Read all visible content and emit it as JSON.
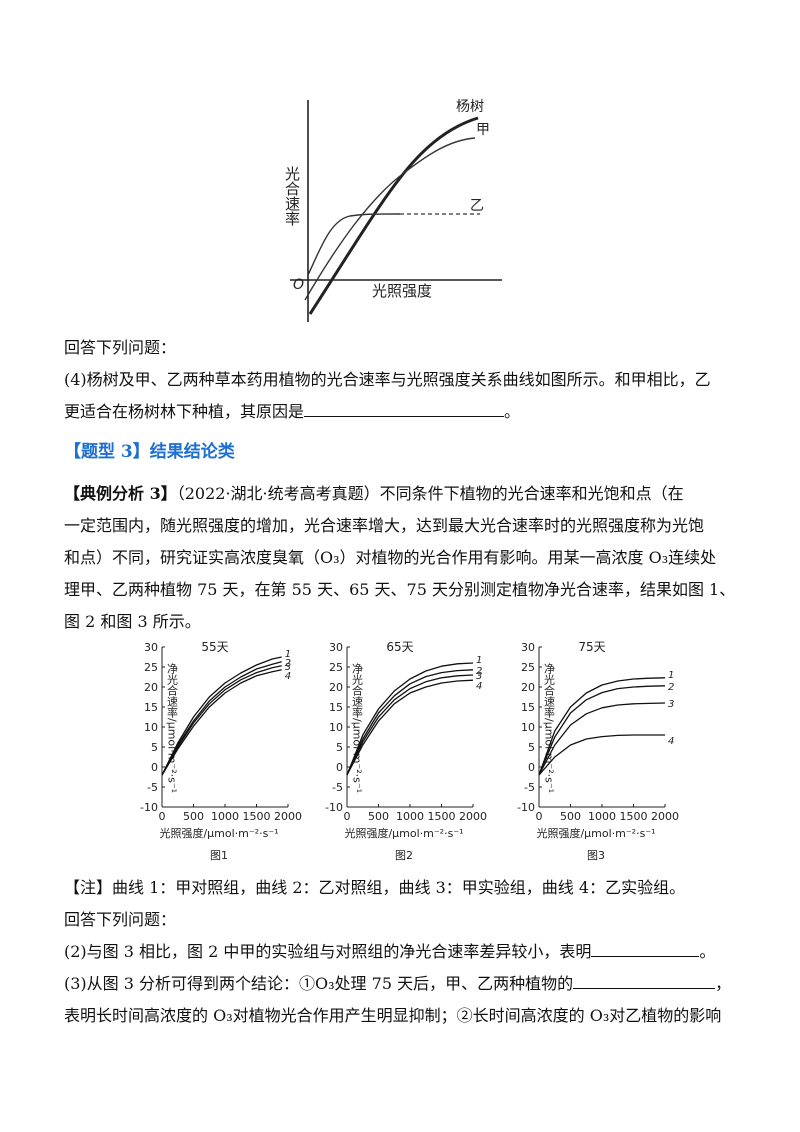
{
  "top_figure": {
    "ylabel": "光合速率",
    "xlabel": "光照强度",
    "origin": "O",
    "curves": [
      "杨树",
      "甲",
      "乙"
    ]
  },
  "q_intro_1": "回答下列问题：",
  "q4_line1": "(4)杨树及甲、乙两种草本药用植物的光合速率与光照强度关系曲线如图所示。和甲相比，乙",
  "q4_line2_pre": "更适合在杨树林下种植，其原因是",
  "q4_line2_post": "。",
  "section_heading": "【题型 3】结果结论类",
  "case_label": "【典例分析 3】",
  "case_line1": "（2022·湖北·统考高考真题）不同条件下植物的光合速率和光饱和点（在",
  "case_line2": "一定范围内，随光照强度的增加，光合速率增大，达到最大光合速率时的光照强度称为光饱",
  "case_line3": "和点）不同，研究证实高浓度臭氧（O₃）对植物的光合作用有影响。用某一高浓度 O₃连续处",
  "case_line4": "理甲、乙两种植物 75 天，在第 55 天、65 天、75 天分别测定植物净光合速率，结果如图 1、",
  "case_line5": "图 2 和图 3 所示。",
  "chart_data": [
    {
      "type": "line",
      "title": "55天",
      "caption": "图1",
      "xlabel": "光照强度/μmol·m⁻²·s⁻¹",
      "ylabel": "净光合速率/μmol·m⁻²·s⁻¹",
      "xlim": [
        0,
        2000
      ],
      "ylim": [
        -10,
        30
      ],
      "xticks": [
        0,
        500,
        1000,
        1500,
        2000
      ],
      "yticks": [
        -10,
        -5,
        0,
        5,
        10,
        15,
        20,
        25,
        30
      ],
      "series": [
        {
          "name": "1",
          "x": [
            0,
            250,
            500,
            750,
            1000,
            1250,
            1500,
            1750,
            1900
          ],
          "y": [
            -2,
            6,
            12.5,
            17.5,
            21,
            23.5,
            25.5,
            27,
            27.5
          ]
        },
        {
          "name": "2",
          "x": [
            0,
            250,
            500,
            750,
            1000,
            1250,
            1500,
            1750,
            1900
          ],
          "y": [
            -2,
            5.5,
            11.5,
            16.5,
            20,
            22.5,
            24.5,
            25.7,
            26.3
          ]
        },
        {
          "name": "3",
          "x": [
            0,
            250,
            500,
            750,
            1000,
            1250,
            1500,
            1750,
            1900
          ],
          "y": [
            -2,
            5,
            11,
            15.8,
            19.3,
            21.8,
            23.6,
            24.8,
            25.3
          ]
        },
        {
          "name": "4",
          "x": [
            0,
            250,
            500,
            750,
            1000,
            1250,
            1500,
            1750,
            1900
          ],
          "y": [
            -2,
            4.5,
            10.2,
            15,
            18.5,
            21,
            22.8,
            23.8,
            24.3
          ]
        }
      ]
    },
    {
      "type": "line",
      "title": "65天",
      "caption": "图2",
      "xlabel": "光照强度/μmol·m⁻²·s⁻¹",
      "ylabel": "净光合速率/μmol·m⁻²·s⁻¹",
      "xlim": [
        0,
        2000
      ],
      "ylim": [
        -10,
        30
      ],
      "xticks": [
        0,
        500,
        1000,
        1500,
        2000
      ],
      "yticks": [
        -10,
        -5,
        0,
        5,
        10,
        15,
        20,
        25,
        30
      ],
      "series": [
        {
          "name": "1",
          "x": [
            0,
            250,
            500,
            750,
            1000,
            1250,
            1500,
            1750,
            2000
          ],
          "y": [
            -2,
            8,
            14.5,
            19,
            22,
            24,
            25.2,
            25.8,
            26
          ]
        },
        {
          "name": "2",
          "x": [
            0,
            250,
            500,
            750,
            1000,
            1250,
            1500,
            1750,
            2000
          ],
          "y": [
            -2,
            7,
            13.5,
            17.8,
            20.8,
            22.6,
            23.6,
            24.1,
            24.3
          ]
        },
        {
          "name": "3",
          "x": [
            0,
            250,
            500,
            750,
            1000,
            1250,
            1500,
            1750,
            2000
          ],
          "y": [
            -2,
            6.3,
            12.5,
            16.8,
            19.6,
            21.3,
            22.3,
            22.8,
            23
          ]
        },
        {
          "name": "4",
          "x": [
            0,
            250,
            500,
            750,
            1000,
            1250,
            1500,
            1750,
            2000
          ],
          "y": [
            -2,
            5.5,
            11.5,
            15.8,
            18.5,
            20,
            21,
            21.5,
            21.7
          ]
        }
      ]
    },
    {
      "type": "line",
      "title": "75天",
      "caption": "图3",
      "xlabel": "光照强度/μmol·m⁻²·s⁻¹",
      "ylabel": "净光合速率/μmol·m⁻²·s⁻¹",
      "xlim": [
        0,
        2000
      ],
      "ylim": [
        -10,
        30
      ],
      "xticks": [
        0,
        500,
        1000,
        1500,
        2000
      ],
      "yticks": [
        -10,
        -5,
        0,
        5,
        10,
        15,
        20,
        25,
        30
      ],
      "series": [
        {
          "name": "1",
          "x": [
            0,
            250,
            500,
            750,
            1000,
            1250,
            1500,
            1750,
            2000
          ],
          "y": [
            -2,
            9,
            15,
            18.5,
            20.5,
            21.5,
            22,
            22.2,
            22.3
          ]
        },
        {
          "name": "2",
          "x": [
            0,
            250,
            500,
            750,
            1000,
            1250,
            1500,
            1750,
            2000
          ],
          "y": [
            -2,
            7.5,
            13.5,
            16.8,
            18.6,
            19.6,
            20,
            20.2,
            20.3
          ]
        },
        {
          "name": "3",
          "x": [
            0,
            250,
            500,
            750,
            1000,
            1250,
            1500,
            1750,
            2000
          ],
          "y": [
            -2,
            5.5,
            10.5,
            13.3,
            14.8,
            15.5,
            15.8,
            15.9,
            16
          ]
        },
        {
          "name": "4",
          "x": [
            0,
            250,
            500,
            750,
            1000,
            1250,
            1500,
            1750,
            2000
          ],
          "y": [
            -2,
            2.5,
            5.5,
            7,
            7.6,
            7.9,
            8,
            8,
            8
          ]
        }
      ]
    }
  ],
  "note": "【注】曲线 1：甲对照组，曲线 2：乙对照组，曲线 3：甲实验组，曲线 4：乙实验组。",
  "q_intro_2": "回答下列问题：",
  "q2_pre": "(2)与图 3 相比，图 2 中甲的实验组与对照组的净光合速率差异较小，表明",
  "q2_post": "。",
  "q3_line1_pre": "(3)从图 3 分析可得到两个结论：①O₃处理 75 天后，甲、乙两种植物的",
  "q3_line1_post": "，",
  "q3_line2": "表明长时间高浓度的 O₃对植物光合作用产生明显抑制；②长时间高浓度的 O₃对乙植物的影响"
}
